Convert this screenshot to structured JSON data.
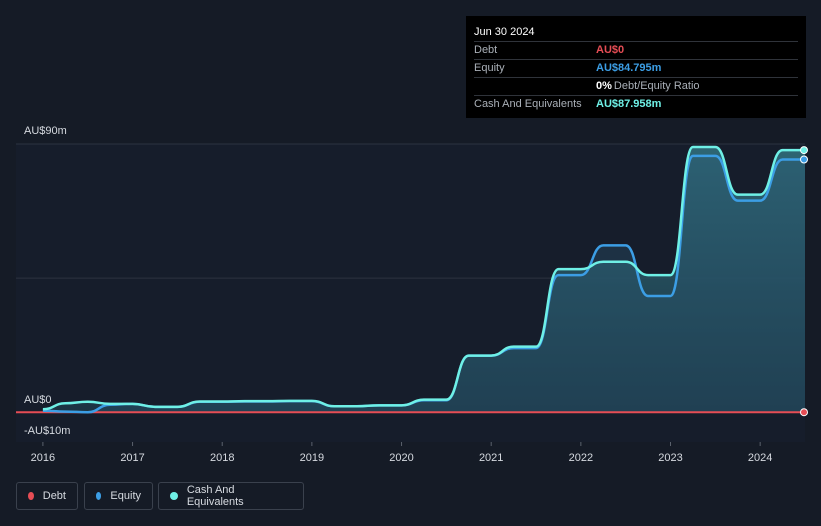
{
  "tooltip": {
    "date": "Jun 30 2024",
    "rows": [
      {
        "label": "Debt",
        "value": "AU$0",
        "color": "#e64d55"
      },
      {
        "label": "Equity",
        "value": "AU$84.795m",
        "color": "#3c9ee5"
      },
      {
        "label": "",
        "value": "0%",
        "sub": "Debt/Equity Ratio",
        "color": "#ffffff"
      },
      {
        "label": "Cash And Equivalents",
        "value": "AU$87.958m",
        "color": "#6ff0e6"
      }
    ]
  },
  "legend": [
    {
      "label": "Debt",
      "color": "#e64d55"
    },
    {
      "label": "Equity",
      "color": "#3c9ee5"
    },
    {
      "label": "Cash And Equivalents",
      "color": "#6ff0e6"
    }
  ],
  "chart_data": {
    "type": "area",
    "title": "",
    "xlabel": "",
    "ylabel": "",
    "x_ticks": [
      "2016",
      "2017",
      "2018",
      "2019",
      "2020",
      "2021",
      "2022",
      "2023",
      "2024"
    ],
    "y_labels": [
      "AU$90m",
      "AU$0",
      "-AU$10m"
    ],
    "xlim": [
      2015.7,
      2024.5
    ],
    "ylim": [
      -10,
      90
    ],
    "grid": true,
    "legend_position": "bottom-left",
    "series": [
      {
        "name": "Debt",
        "color": "#e64d55",
        "x": [
          2015.7,
          2024.5
        ],
        "values": [
          0,
          0
        ]
      },
      {
        "name": "Equity",
        "color": "#3c9ee5",
        "x": [
          2016.0,
          2016.25,
          2016.5,
          2016.75,
          2017.0,
          2017.25,
          2017.5,
          2017.75,
          2018.0,
          2018.25,
          2018.5,
          2018.75,
          2019.0,
          2019.25,
          2019.5,
          2019.75,
          2020.0,
          2020.25,
          2020.5,
          2020.75,
          2021.0,
          2021.25,
          2021.5,
          2021.75,
          2022.0,
          2022.25,
          2022.5,
          2022.75,
          2023.0,
          2023.25,
          2023.5,
          2023.75,
          2024.0,
          2024.25,
          2024.5
        ],
        "values": [
          0.5,
          0.2,
          0.0,
          2.5,
          2.8,
          1.8,
          1.8,
          3.5,
          3.5,
          3.6,
          3.6,
          3.7,
          3.7,
          2.0,
          2.0,
          2.3,
          2.3,
          4.0,
          4.0,
          19.0,
          19.0,
          21.5,
          21.5,
          46.0,
          46.0,
          56.0,
          56.0,
          39.0,
          39.0,
          86.0,
          86.0,
          71.0,
          71.0,
          84.795,
          84.795
        ]
      },
      {
        "name": "Cash And Equivalents",
        "color": "#6ff0e6",
        "x": [
          2016.0,
          2016.25,
          2016.5,
          2016.75,
          2017.0,
          2017.25,
          2017.5,
          2017.75,
          2018.0,
          2018.25,
          2018.5,
          2018.75,
          2019.0,
          2019.25,
          2019.5,
          2019.75,
          2020.0,
          2020.25,
          2020.5,
          2020.75,
          2021.0,
          2021.25,
          2021.5,
          2021.75,
          2022.0,
          2022.25,
          2022.5,
          2022.75,
          2023.0,
          2023.25,
          2023.5,
          2023.75,
          2024.0,
          2024.25,
          2024.5
        ],
        "values": [
          1.0,
          3.0,
          3.5,
          2.8,
          2.8,
          1.8,
          1.8,
          3.6,
          3.6,
          3.7,
          3.7,
          3.8,
          3.8,
          2.0,
          2.0,
          2.3,
          2.3,
          4.2,
          4.2,
          19.0,
          19.0,
          22.0,
          22.0,
          48.0,
          48.0,
          50.5,
          50.5,
          46.0,
          46.0,
          89.0,
          89.0,
          73.0,
          73.0,
          87.958,
          87.958
        ]
      }
    ]
  }
}
